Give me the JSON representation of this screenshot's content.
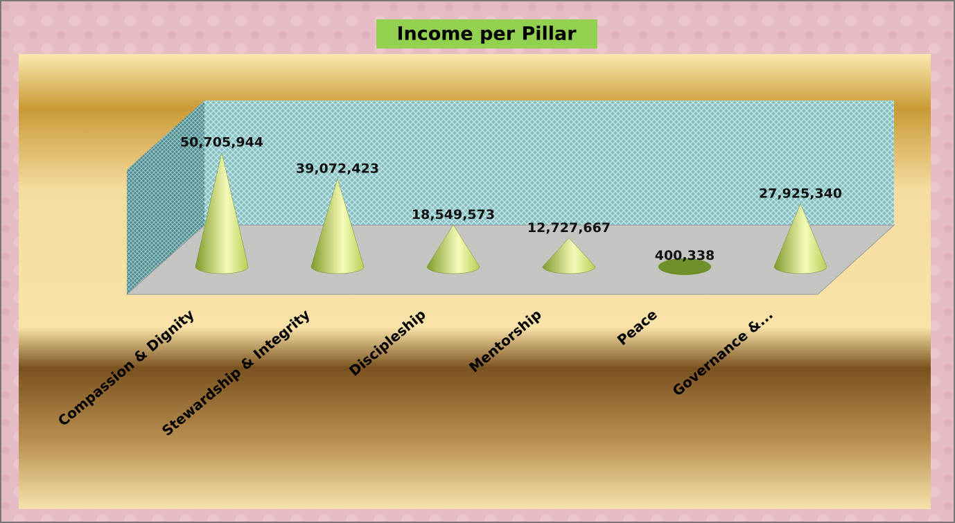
{
  "chart_data": {
    "type": "cone",
    "title": "Income per Pillar",
    "categories": [
      "Compassion & Dignity",
      "Stewardship & Integrity",
      "Discipleship",
      "Mentorship",
      "Peace",
      "Governance &..."
    ],
    "values": [
      50705944,
      39072423,
      18549573,
      12727667,
      400338,
      27925340
    ],
    "value_labels": [
      "50,705,944",
      "39,072,423",
      "18,549,573",
      "12,727,667",
      "400,338",
      "27,925,340"
    ],
    "color": "#b5cf55"
  }
}
